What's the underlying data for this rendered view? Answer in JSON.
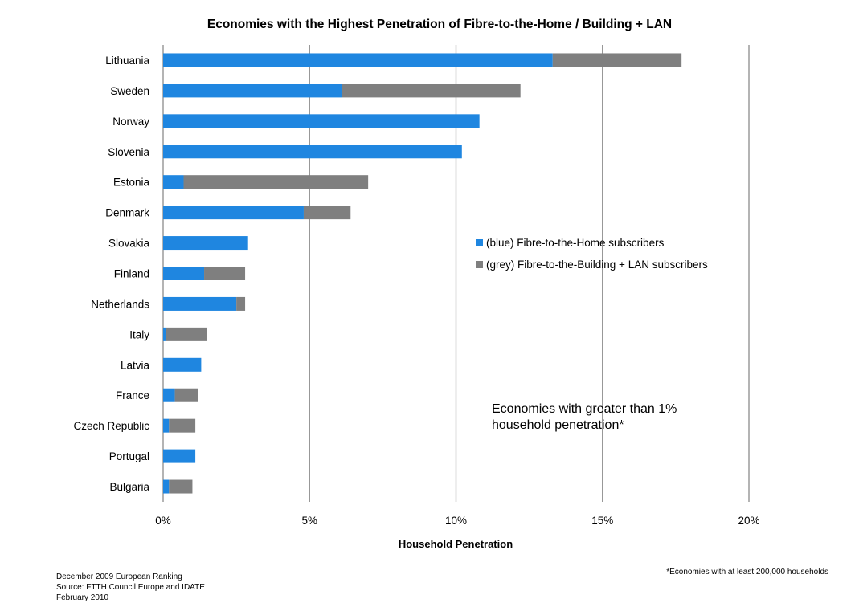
{
  "chart_data": {
    "type": "bar",
    "orientation": "horizontal",
    "stacked": true,
    "title": "Economies with the Highest Penetration of Fibre-to-the-Home / Building + LAN",
    "xlabel": "Household Penetration",
    "ylabel": "",
    "xlim": [
      0,
      20
    ],
    "xticks": [
      "0%",
      "5%",
      "10%",
      "15%",
      "20%"
    ],
    "xtick_values": [
      0,
      5,
      10,
      15,
      20
    ],
    "grid": "vertical",
    "legend_position": "right",
    "categories": [
      "Lithuania",
      "Sweden",
      "Norway",
      "Slovenia",
      "Estonia",
      "Denmark",
      "Slovakia",
      "Finland",
      "Netherlands",
      "Italy",
      "Latvia",
      "France",
      "Czech Republic",
      "Portugal",
      "Bulgaria"
    ],
    "series": [
      {
        "name": "(blue) Fibre-to-the-Home subscribers",
        "color": "#1f86e0",
        "values": [
          13.3,
          6.1,
          10.8,
          10.2,
          0.7,
          4.8,
          2.9,
          1.4,
          2.5,
          0.1,
          1.3,
          0.4,
          0.2,
          1.1,
          0.2
        ]
      },
      {
        "name": "(grey) Fibre-to-the-Building + LAN subscribers",
        "color": "#7f7f7f",
        "values": [
          4.4,
          6.1,
          0.0,
          0.0,
          6.3,
          1.6,
          0.0,
          1.4,
          0.3,
          1.4,
          0.0,
          0.8,
          0.9,
          0.0,
          0.8
        ]
      }
    ],
    "annotation": [
      "Economies with greater than 1%",
      "household penetration*"
    ],
    "footnote": "*Economies with at least 200,000 households",
    "source_lines": [
      "December 2009 European Ranking",
      "Source: FTTH Council Europe and IDATE",
      "February 2010"
    ]
  }
}
